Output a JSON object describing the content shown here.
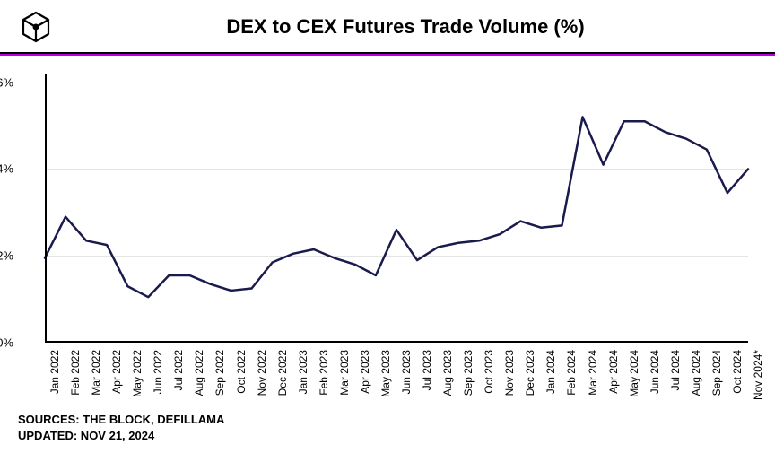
{
  "title": "DEX to CEX Futures Trade Volume (%)",
  "accent_color": "#b800e6",
  "line_color": "#1a1a4d",
  "grid_color": "#e5e5e5",
  "background_color": "#ffffff",
  "line_width": 2.5,
  "chart": {
    "type": "line",
    "categories": [
      "Jan 2022",
      "Feb 2022",
      "Mar 2022",
      "Apr 2022",
      "May 2022",
      "Jun 2022",
      "Jul 2022",
      "Aug 2022",
      "Sep 2022",
      "Oct 2022",
      "Nov 2022",
      "Dec 2022",
      "Jan 2023",
      "Feb 2023",
      "Mar 2023",
      "Apr 2023",
      "May 2023",
      "Jun 2023",
      "Jul 2023",
      "Aug 2023",
      "Sep 2023",
      "Oct 2023",
      "Nov 2023",
      "Dec 2023",
      "Jan 2024",
      "Feb 2024",
      "Mar 2024",
      "Apr 2024",
      "May 2024",
      "Jun 2024",
      "Jul 2024",
      "Aug 2024",
      "Sep 2024",
      "Oct 2024",
      "Nov 2024*"
    ],
    "values": [
      1.95,
      2.9,
      2.35,
      2.25,
      1.3,
      1.05,
      1.55,
      1.55,
      1.35,
      1.2,
      1.25,
      1.85,
      2.05,
      2.15,
      1.95,
      1.8,
      1.55,
      2.6,
      1.9,
      2.2,
      2.3,
      2.35,
      2.5,
      2.8,
      2.65,
      2.7,
      5.2,
      4.1,
      5.1,
      5.1,
      4.85,
      4.7,
      4.45,
      3.45,
      4.0
    ],
    "ylim": [
      0,
      6.2
    ],
    "yticks": [
      0,
      2,
      4,
      6
    ],
    "ytick_labels": [
      "0%",
      "2%",
      "4%",
      "6%"
    ],
    "title_fontsize": 22,
    "label_fontsize": 12
  },
  "sources_line1": "SOURCES: THE BLOCK, DEFILLAMA",
  "sources_line2": "UPDATED: NOV 21, 2024"
}
